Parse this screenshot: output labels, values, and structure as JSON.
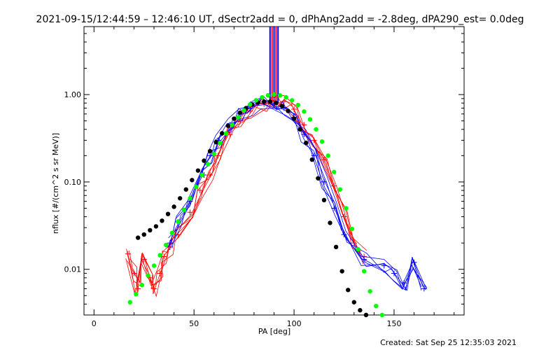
{
  "chart_data": {
    "type": "line",
    "title": "2021-09-15/12:44:59 – 12:46:10 UT, dSectr2add = 0, dPhAng2add = -2.8deg, dPA290_est=  0.0deg",
    "xlabel": "PA [deg]",
    "ylabel": "nflux [#/(cm^2 s sr MeV)]",
    "xlim": [
      -5,
      185
    ],
    "ylim": [
      0.003,
      6
    ],
    "yscale": "log",
    "x_ticks": [
      0,
      50,
      100,
      150
    ],
    "x_tick_labels": [
      "0",
      "50",
      "100",
      "150"
    ],
    "y_ticks": [
      0.01,
      0.1,
      1.0
    ],
    "y_tick_labels": [
      "0.01",
      "0.10",
      "1.00"
    ],
    "grid": false,
    "footer": "Created: Sat Sep 25 12:35:03 2021",
    "colors": {
      "red": "#ff0000",
      "blue": "#0000ff",
      "black": "#000000",
      "green": "#00ff00"
    },
    "series": [
      {
        "color": "red",
        "kind": "lines_plus",
        "description_points": [
          [
            17,
            0.015
          ],
          [
            20,
            0.009
          ],
          [
            22,
            0.006
          ],
          [
            25,
            0.013
          ],
          [
            28,
            0.008
          ],
          [
            30,
            0.006
          ],
          [
            33,
            0.009
          ],
          [
            35,
            0.014
          ],
          [
            38,
            0.018
          ],
          [
            42,
            0.025
          ],
          [
            48,
            0.045
          ],
          [
            53,
            0.08
          ],
          [
            58,
            0.12
          ],
          [
            62,
            0.2
          ],
          [
            68,
            0.35
          ],
          [
            73,
            0.5
          ],
          [
            78,
            0.65
          ],
          [
            85,
            0.78
          ],
          [
            90,
            0.85
          ],
          [
            95,
            0.83
          ],
          [
            100,
            0.68
          ],
          [
            105,
            0.45
          ],
          [
            110,
            0.3
          ],
          [
            115,
            0.18
          ],
          [
            120,
            0.09
          ],
          [
            125,
            0.04
          ],
          [
            130,
            0.02
          ],
          [
            135,
            0.014
          ]
        ]
      },
      {
        "color": "blue",
        "kind": "lines_plus",
        "description_points": [
          [
            38,
            0.02
          ],
          [
            42,
            0.035
          ],
          [
            48,
            0.06
          ],
          [
            55,
            0.12
          ],
          [
            58,
            0.2
          ],
          [
            62,
            0.3
          ],
          [
            68,
            0.45
          ],
          [
            73,
            0.6
          ],
          [
            78,
            0.7
          ],
          [
            85,
            0.82
          ],
          [
            90,
            0.78
          ],
          [
            95,
            0.7
          ],
          [
            100,
            0.55
          ],
          [
            105,
            0.35
          ],
          [
            110,
            0.2
          ],
          [
            115,
            0.1
          ],
          [
            120,
            0.05
          ],
          [
            125,
            0.025
          ],
          [
            135,
            0.013
          ],
          [
            145,
            0.011
          ],
          [
            150,
            0.009
          ],
          [
            155,
            0.007
          ],
          [
            160,
            0.012
          ],
          [
            165,
            0.006
          ]
        ]
      },
      {
        "color": "black",
        "kind": "dots",
        "x": [
          22,
          25,
          28,
          31,
          34,
          37,
          40,
          43,
          46,
          49,
          52,
          55,
          58,
          61,
          64,
          67,
          70,
          73,
          76,
          79,
          82,
          85,
          88,
          91,
          94,
          97,
          100,
          103,
          106,
          109,
          112,
          115,
          118,
          121,
          124,
          127,
          130,
          133,
          136
        ],
        "y": [
          0.023,
          0.025,
          0.028,
          0.031,
          0.036,
          0.043,
          0.052,
          0.065,
          0.082,
          0.105,
          0.135,
          0.175,
          0.225,
          0.285,
          0.36,
          0.44,
          0.53,
          0.62,
          0.7,
          0.77,
          0.81,
          0.83,
          0.83,
          0.8,
          0.74,
          0.65,
          0.53,
          0.4,
          0.28,
          0.18,
          0.11,
          0.062,
          0.034,
          0.018,
          0.0095,
          0.0058,
          0.0042,
          0.0034,
          0.003
        ]
      },
      {
        "color": "green",
        "kind": "dots",
        "x": [
          18,
          21,
          24,
          27,
          30,
          33,
          36,
          39,
          42,
          45,
          48,
          51,
          54,
          57,
          60,
          63,
          66,
          69,
          72,
          75,
          78,
          81,
          84,
          87,
          90,
          93,
          96,
          99,
          102,
          105,
          108,
          111,
          114,
          117,
          120,
          123,
          126,
          129,
          132,
          135,
          138,
          141,
          144
        ],
        "y": [
          0.0042,
          0.0052,
          0.0066,
          0.0085,
          0.011,
          0.0145,
          0.019,
          0.026,
          0.035,
          0.048,
          0.065,
          0.088,
          0.12,
          0.16,
          0.21,
          0.28,
          0.36,
          0.45,
          0.55,
          0.66,
          0.77,
          0.86,
          0.93,
          0.98,
          1.0,
          0.98,
          0.93,
          0.86,
          0.76,
          0.64,
          0.52,
          0.4,
          0.29,
          0.2,
          0.13,
          0.082,
          0.05,
          0.029,
          0.017,
          0.0095,
          0.0056,
          0.0038,
          0.003
        ]
      }
    ],
    "annotation_bars": {
      "x": [
        88,
        89,
        90,
        91,
        92
      ],
      "colors": [
        "blue",
        "red",
        "blue",
        "red",
        "blue"
      ],
      "y_from": 0.8,
      "y_to": 6
    }
  }
}
